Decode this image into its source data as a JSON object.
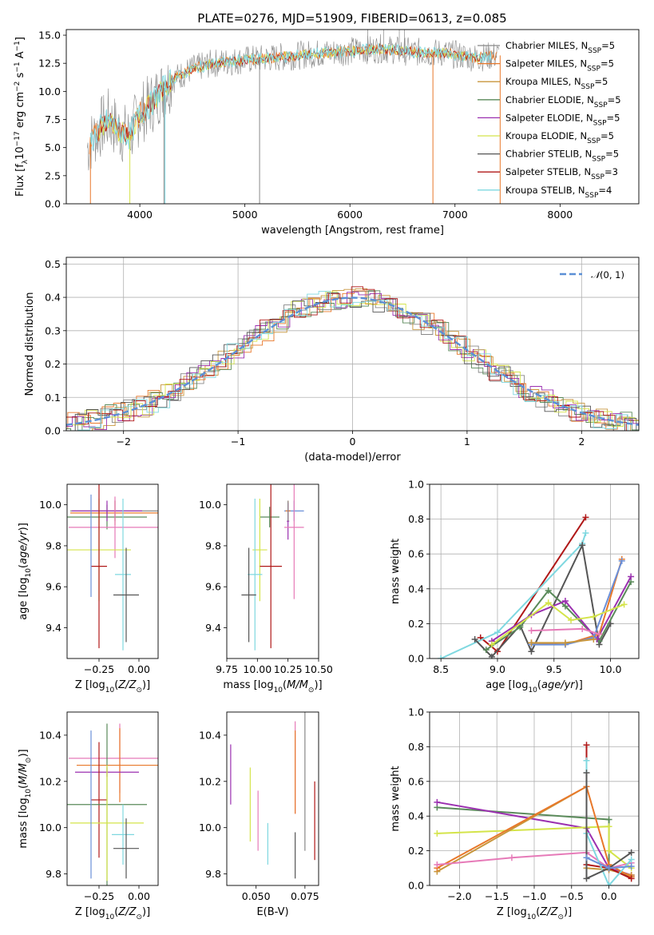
{
  "figure_title": "PLATE=0276, MJD=51909, FIBERID=0613, z=0.085",
  "colors": {
    "Chabrier MILES": "#888888",
    "Salpeter MILES": "#e8782a",
    "Kroupa MILES": "#c8963c",
    "Chabrier ELODIE": "#5a8a5a",
    "Salpeter ELODIE": "#9b30b0",
    "Kroupa ELODIE": "#d4e44a",
    "Chabrier STELIB": "#555555",
    "Salpeter STELIB": "#b01818",
    "Kroupa STELIB": "#7fd8e0",
    "normal": "#5b8fd6",
    "pink": "#e67ab8",
    "blue": "#6a8fd8"
  },
  "chart_data": [
    {
      "id": "spectrum",
      "type": "line",
      "title": "PLATE=0276, MJD=51909, FIBERID=0613, z=0.085",
      "xlabel": "wavelength [Angstrom, rest frame]",
      "ylabel": "Flux [f_λ 10^-17 erg cm^-2 s^-1 A^-1]",
      "xlim": [
        3300,
        8750
      ],
      "ylim": [
        0,
        15.5
      ],
      "xticks": [
        4000,
        5000,
        6000,
        7000,
        8000
      ],
      "yticks": [
        0.0,
        2.5,
        5.0,
        7.5,
        10.0,
        12.5,
        15.0
      ],
      "continuum": {
        "x": [
          3500,
          3600,
          3700,
          3800,
          3900,
          4000,
          4100,
          4200,
          4300,
          4500,
          4700,
          5000,
          5300,
          5600,
          6000,
          6300,
          6600,
          6900,
          7200,
          7400
        ],
        "y": [
          5.0,
          6.5,
          7.5,
          6.5,
          6.0,
          8.0,
          8.8,
          10.0,
          11.0,
          12.0,
          12.5,
          12.8,
          13.0,
          13.3,
          13.6,
          13.8,
          13.5,
          13.4,
          13.0,
          13.2
        ]
      },
      "legend": [
        "Chabrier MILES, N_SSP=5",
        "Salpeter MILES, N_SSP=5",
        "Kroupa MILES, N_SSP=5",
        "Chabrier ELODIE, N_SSP=5",
        "Salpeter ELODIE, N_SSP=5",
        "Kroupa ELODIE, N_SSP=5",
        "Chabrier STELIB, N_SSP=5",
        "Salpeter STELIB, N_SSP=3",
        "Kroupa STELIB, N_SSP=4"
      ],
      "legend_position": "right",
      "grid": false
    },
    {
      "id": "residuals",
      "type": "histogram",
      "xlabel": "(data-model)/error",
      "ylabel": "Normed distribution",
      "xlim": [
        -2.5,
        2.5
      ],
      "ylim": [
        0,
        0.52
      ],
      "xticks": [
        -2,
        -1,
        0,
        1,
        2
      ],
      "yticks": [
        0.0,
        0.1,
        0.2,
        0.3,
        0.4,
        0.5
      ],
      "legend": [
        "N(0, 1)"
      ],
      "legend_position": "top-right",
      "grid": true
    },
    {
      "id": "age-vs-Z",
      "type": "errorbar",
      "xlabel": "Z [log10(Z/Z⊙)]",
      "ylabel": "age [log10(age/yr)]",
      "xlim": [
        -0.45,
        0.12
      ],
      "ylim": [
        9.25,
        10.1
      ],
      "xticks": [
        -0.25,
        0.0
      ],
      "yticks": [
        9.4,
        9.6,
        9.8,
        10.0
      ],
      "points": [
        {
          "x": -0.15,
          "y": 9.97,
          "xerr": 0.28,
          "yerr": 0.05,
          "color": "#888888"
        },
        {
          "x": -0.15,
          "y": 9.96,
          "xerr": 0.28,
          "yerr": 0.06,
          "color": "#e8782a"
        },
        {
          "x": -0.2,
          "y": 9.94,
          "xerr": 0.25,
          "yerr": 0.06,
          "color": "#5a8a5a"
        },
        {
          "x": -0.2,
          "y": 9.97,
          "xerr": 0.22,
          "yerr": 0.05,
          "color": "#9b30b0"
        },
        {
          "x": -0.15,
          "y": 9.89,
          "xerr": 0.29,
          "yerr": 0.15,
          "color": "#e67ab8"
        },
        {
          "x": -0.25,
          "y": 9.78,
          "xerr": 0.2,
          "yerr": 0.25,
          "color": "#d4e44a"
        },
        {
          "x": -0.25,
          "y": 9.7,
          "xerr": 0.05,
          "yerr": 0.4,
          "color": "#b01818"
        },
        {
          "x": -0.1,
          "y": 9.66,
          "xerr": 0.05,
          "yerr": 0.37,
          "color": "#7fd8e0"
        },
        {
          "x": -0.08,
          "y": 9.56,
          "xerr": 0.08,
          "yerr": 0.23,
          "color": "#555555"
        },
        {
          "x": -0.3,
          "y": 9.8,
          "xerr": 0.0,
          "yerr": 0.25,
          "color": "#6a8fd8"
        }
      ]
    },
    {
      "id": "age-vs-mass",
      "type": "errorbar",
      "xlabel": "mass [log10(M/M⊙)]",
      "ylabel": "",
      "xlim": [
        9.75,
        10.5
      ],
      "ylim": [
        9.25,
        10.1
      ],
      "xticks": [
        9.75,
        10.0,
        10.25,
        10.5
      ],
      "yticks": [
        9.4,
        9.6,
        9.8,
        10.0
      ],
      "points": [
        {
          "x": 10.3,
          "y": 9.97,
          "xerr": 0.08,
          "yerr": 0.05,
          "color": "#6a8fd8"
        },
        {
          "x": 10.25,
          "y": 9.97,
          "xerr": 0.02,
          "yerr": 0.05,
          "color": "#e8782a"
        },
        {
          "x": 10.1,
          "y": 9.94,
          "xerr": 0.08,
          "yerr": 0.05,
          "color": "#5a8a5a"
        },
        {
          "x": 10.25,
          "y": 9.92,
          "xerr": 0.01,
          "yerr": 0.09,
          "color": "#9b30b0"
        },
        {
          "x": 10.3,
          "y": 9.89,
          "xerr": 0.08,
          "yerr": 0.35,
          "color": "#e67ab8"
        },
        {
          "x": 10.02,
          "y": 9.78,
          "xerr": 0.06,
          "yerr": 0.25,
          "color": "#d4e44a"
        },
        {
          "x": 10.11,
          "y": 9.7,
          "xerr": 0.09,
          "yerr": 0.4,
          "color": "#b01818"
        },
        {
          "x": 9.98,
          "y": 9.66,
          "xerr": 0.06,
          "yerr": 0.37,
          "color": "#7fd8e0"
        },
        {
          "x": 9.93,
          "y": 9.56,
          "xerr": 0.06,
          "yerr": 0.23,
          "color": "#555555"
        },
        {
          "x": 10.25,
          "y": 9.97,
          "xerr": 0.0,
          "yerr": 0.05,
          "color": "#888888"
        }
      ]
    },
    {
      "id": "weight-vs-age",
      "type": "line",
      "xlabel": "age [log10(age/yr)]",
      "ylabel": "mass weight",
      "xlim": [
        8.4,
        10.25
      ],
      "ylim": [
        0,
        1.0
      ],
      "xticks": [
        8.5,
        9.0,
        9.5,
        10.0
      ],
      "yticks": [
        0.0,
        0.2,
        0.4,
        0.6,
        0.8,
        1.0
      ],
      "grid": true,
      "series": [
        {
          "color": "#b01818",
          "x": [
            8.85,
            9.0,
            9.78
          ],
          "y": [
            0.12,
            0.04,
            0.81
          ]
        },
        {
          "color": "#7fd8e0",
          "x": [
            8.5,
            9.0,
            9.75,
            9.78
          ],
          "y": [
            0.0,
            0.15,
            0.66,
            0.72
          ]
        },
        {
          "color": "#555555",
          "x": [
            8.8,
            8.95,
            9.2,
            9.3,
            9.75,
            9.9,
            10.0
          ],
          "y": [
            0.11,
            0.01,
            0.19,
            0.04,
            0.65,
            0.08,
            0.2
          ]
        },
        {
          "color": "#5a8a5a",
          "x": [
            8.9,
            9.2,
            9.45,
            9.6,
            9.9,
            10.18
          ],
          "y": [
            0.05,
            0.18,
            0.39,
            0.3,
            0.1,
            0.44
          ]
        },
        {
          "color": "#9b30b0",
          "x": [
            8.95,
            9.3,
            9.6,
            9.88,
            10.18
          ],
          "y": [
            0.1,
            0.25,
            0.33,
            0.11,
            0.47
          ]
        },
        {
          "color": "#e8782a",
          "x": [
            9.3,
            9.6,
            9.9,
            10.1
          ],
          "y": [
            0.09,
            0.08,
            0.14,
            0.57
          ]
        },
        {
          "color": "#6a8fd8",
          "x": [
            9.3,
            9.6,
            9.85,
            10.1
          ],
          "y": [
            0.08,
            0.08,
            0.12,
            0.56
          ]
        },
        {
          "color": "#d4e44a",
          "x": [
            8.95,
            9.45,
            9.65,
            9.85,
            10.12
          ],
          "y": [
            0.08,
            0.32,
            0.22,
            0.24,
            0.31
          ]
        },
        {
          "color": "#e67ab8",
          "x": [
            9.3,
            9.75,
            9.9
          ],
          "y": [
            0.16,
            0.17,
            0.14
          ]
        },
        {
          "color": "#c8963c",
          "x": [
            9.3,
            9.6,
            9.85
          ],
          "y": [
            0.09,
            0.09,
            0.11
          ]
        }
      ]
    },
    {
      "id": "mass-vs-Z",
      "type": "errorbar",
      "xlabel": "Z [log10(Z/Z⊙)]",
      "ylabel": "mass [log10(M/M⊙)]",
      "xlim": [
        -0.45,
        0.12
      ],
      "ylim": [
        9.75,
        10.5
      ],
      "xticks": [
        -0.25,
        0.0
      ],
      "yticks": [
        9.8,
        10.0,
        10.2,
        10.4
      ],
      "points": [
        {
          "x": -0.12,
          "y": 10.3,
          "xerr": 0.32,
          "yerr": 0.15,
          "color": "#e67ab8"
        },
        {
          "x": -0.12,
          "y": 10.27,
          "xerr": 0.27,
          "yerr": 0.16,
          "color": "#e8782a"
        },
        {
          "x": -0.2,
          "y": 10.24,
          "xerr": 0.2,
          "yerr": 0.02,
          "color": "#9b30b0"
        },
        {
          "x": -0.25,
          "y": 10.12,
          "xerr": 0.05,
          "yerr": 0.25,
          "color": "#b01818"
        },
        {
          "x": -0.2,
          "y": 10.1,
          "xerr": 0.25,
          "yerr": 0.35,
          "color": "#5a8a5a"
        },
        {
          "x": -0.2,
          "y": 10.02,
          "xerr": 0.23,
          "yerr": 0.25,
          "color": "#d4e44a"
        },
        {
          "x": -0.1,
          "y": 9.97,
          "xerr": 0.07,
          "yerr": 0.13,
          "color": "#7fd8e0"
        },
        {
          "x": -0.08,
          "y": 9.91,
          "xerr": 0.08,
          "yerr": 0.13,
          "color": "#555555"
        },
        {
          "x": -0.3,
          "y": 10.1,
          "xerr": 0.0,
          "yerr": 0.32,
          "color": "#6a8fd8"
        }
      ]
    },
    {
      "id": "mass-vs-ebv",
      "type": "errorbar",
      "xlabel": "E(B-V)",
      "ylabel": "",
      "xlim": [
        0.035,
        0.082
      ],
      "ylim": [
        9.75,
        10.5
      ],
      "xticks": [
        0.05,
        0.075
      ],
      "yticks": [
        9.8,
        10.0,
        10.2,
        10.4
      ],
      "points": [
        {
          "x": 0.037,
          "y": 10.23,
          "xerr": 0.0,
          "yerr": 0.13,
          "color": "#9b30b0"
        },
        {
          "x": 0.047,
          "y": 10.1,
          "xerr": 0.0,
          "yerr": 0.16,
          "color": "#d4e44a"
        },
        {
          "x": 0.051,
          "y": 10.03,
          "xerr": 0.0,
          "yerr": 0.13,
          "color": "#e67ab8"
        },
        {
          "x": 0.056,
          "y": 9.93,
          "xerr": 0.0,
          "yerr": 0.09,
          "color": "#7fd8e0"
        },
        {
          "x": 0.07,
          "y": 10.26,
          "xerr": 0.0,
          "yerr": 0.2,
          "color": "#e67ab8"
        },
        {
          "x": 0.07,
          "y": 10.24,
          "xerr": 0.0,
          "yerr": 0.18,
          "color": "#e8782a"
        },
        {
          "x": 0.07,
          "y": 9.88,
          "xerr": 0.0,
          "yerr": 0.1,
          "color": "#555555"
        },
        {
          "x": 0.075,
          "y": 10.2,
          "xerr": 0.0,
          "yerr": 0.3,
          "color": "#888888"
        },
        {
          "x": 0.08,
          "y": 10.03,
          "xerr": 0.0,
          "yerr": 0.17,
          "color": "#b01818"
        }
      ]
    },
    {
      "id": "weight-vs-Z",
      "type": "line",
      "xlabel": "Z [log10(Z/Z⊙)]",
      "ylabel": "mass weight",
      "xlim": [
        -2.4,
        0.4
      ],
      "ylim": [
        0,
        1.0
      ],
      "xticks": [
        -2.0,
        -1.5,
        -1.0,
        -0.5,
        0.0
      ],
      "yticks": [
        0.0,
        0.2,
        0.4,
        0.6,
        0.8,
        1.0
      ],
      "grid": true,
      "series": [
        {
          "color": "#5a8a5a",
          "x": [
            -2.3,
            0.0,
            0.0,
            0.3
          ],
          "y": [
            0.45,
            0.38,
            0.1,
            0.05
          ]
        },
        {
          "color": "#9b30b0",
          "x": [
            -2.3,
            -0.3,
            0.0,
            0.3
          ],
          "y": [
            0.48,
            0.33,
            0.1,
            0.06
          ]
        },
        {
          "color": "#d4e44a",
          "x": [
            -2.3,
            0.0,
            0.0,
            0.3
          ],
          "y": [
            0.3,
            0.34,
            0.2,
            0.1
          ]
        },
        {
          "color": "#c8963c",
          "x": [
            -2.3,
            -0.3,
            -0.3,
            0.0,
            0.3
          ],
          "y": [
            0.08,
            0.57,
            0.1,
            0.09,
            0.06
          ]
        },
        {
          "color": "#e8782a",
          "x": [
            -2.3,
            -0.3,
            0.0,
            0.3
          ],
          "y": [
            0.1,
            0.57,
            0.12,
            0.05
          ]
        },
        {
          "color": "#e67ab8",
          "x": [
            -2.3,
            -1.3,
            -0.3,
            0.0,
            0.3
          ],
          "y": [
            0.12,
            0.16,
            0.19,
            0.1,
            0.13
          ]
        },
        {
          "color": "#b01818",
          "x": [
            -0.3,
            -0.3,
            0.0,
            0.3
          ],
          "y": [
            0.81,
            0.12,
            0.1,
            0.04
          ]
        },
        {
          "color": "#7fd8e0",
          "x": [
            -0.3,
            -0.3,
            0.0,
            0.3
          ],
          "y": [
            0.72,
            0.3,
            0.0,
            0.15
          ]
        },
        {
          "color": "#555555",
          "x": [
            -0.3,
            -0.3,
            0.0,
            0.3
          ],
          "y": [
            0.65,
            0.04,
            0.1,
            0.19
          ]
        },
        {
          "color": "#6a8fd8",
          "x": [
            -0.3,
            0.0,
            0.3
          ],
          "y": [
            0.16,
            0.1,
            0.11
          ]
        }
      ]
    }
  ]
}
